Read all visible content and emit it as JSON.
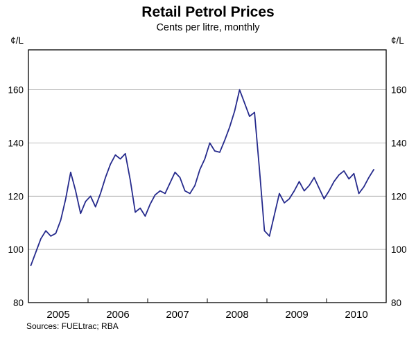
{
  "chart_data": {
    "type": "line",
    "title": "Retail Petrol Prices",
    "subtitle": "Cents per litre, monthly",
    "unit_label": "¢/L",
    "source": "Sources: FUELtrac; RBA",
    "ylim": [
      80,
      175
    ],
    "yticks": [
      80,
      100,
      120,
      140,
      160
    ],
    "gridlines": [
      100,
      120,
      140,
      160
    ],
    "x_year_labels": [
      "2005",
      "2006",
      "2007",
      "2008",
      "2009",
      "2010"
    ],
    "line_color": "#252a8c",
    "grid_color": "#a6a6a6",
    "frame_color": "#000000",
    "series": [
      {
        "name": "Retail petrol price",
        "start": "2005-01",
        "frequency": "monthly",
        "values": [
          94,
          99,
          104,
          107,
          105,
          106,
          111,
          119,
          129,
          122,
          113.5,
          118,
          120,
          116,
          121,
          127,
          132,
          135.5,
          134,
          136,
          126,
          114,
          115.5,
          112.5,
          117,
          120.5,
          122,
          121,
          125,
          129,
          127,
          122,
          121,
          124,
          130,
          134,
          140,
          137,
          136.5,
          141,
          146,
          152,
          160,
          155,
          150,
          151.5,
          130,
          107,
          105,
          113,
          121,
          117.5,
          119,
          122,
          125.5,
          122,
          124,
          127,
          123,
          119,
          122,
          125.5,
          128,
          129.5,
          126.5,
          128.5,
          121,
          123.5,
          127,
          130
        ]
      }
    ]
  }
}
